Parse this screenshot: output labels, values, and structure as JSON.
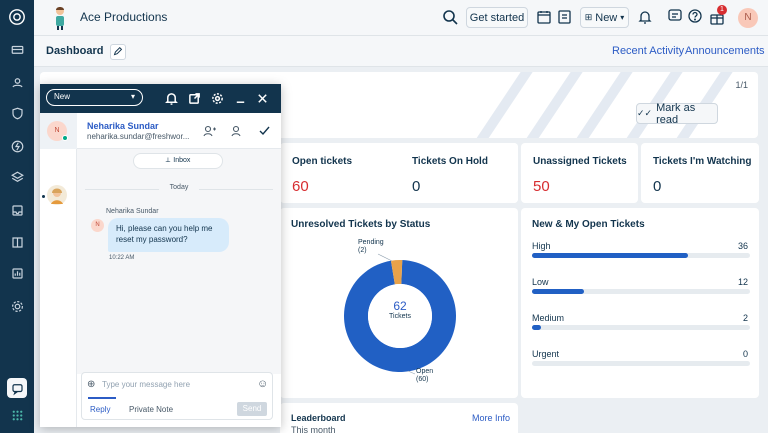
{
  "header": {
    "app_title": "Ace Productions",
    "get_started": "Get started",
    "new_button": "New",
    "notification_count": "1",
    "avatar_initial": "N"
  },
  "subheader": {
    "page_title": "Dashboard",
    "recent_activity": "Recent Activity",
    "announcements": "Announcements"
  },
  "announcement": {
    "page_counter": "1/1",
    "mark_as_read": "Mark as read"
  },
  "stats": [
    {
      "label": "Open tickets",
      "value": "60",
      "color": "#d72d30"
    },
    {
      "label": "Tickets On Hold",
      "value": "0",
      "color": "#12344d"
    },
    {
      "label": "Unassigned Tickets",
      "value": "50",
      "color": "#d72d30"
    },
    {
      "label": "Tickets I'm Watching",
      "value": "0",
      "color": "#12344d"
    }
  ],
  "unresolved": {
    "title": "Unresolved Tickets by Status",
    "center_value": "62",
    "center_label": "Tickets",
    "pending_label": "Pending",
    "pending_count": "(2)",
    "open_label": "Open",
    "open_count": "(60)"
  },
  "chart_data": {
    "type": "pie",
    "title": "Unresolved Tickets by Status",
    "categories": [
      "Open",
      "Pending"
    ],
    "values": [
      60,
      2
    ],
    "colors": [
      "#2160c4",
      "#e8a24a"
    ]
  },
  "my_open": {
    "title": "New & My Open Tickets",
    "rows": [
      {
        "label": "High",
        "count": "36",
        "fraction": 1.0
      },
      {
        "label": "Low",
        "count": "12",
        "fraction": 0.333
      },
      {
        "label": "Medium",
        "count": "2",
        "fraction": 0.056
      },
      {
        "label": "Urgent",
        "count": "0",
        "fraction": 0
      }
    ]
  },
  "leaderboard": {
    "title": "Leaderboard",
    "subtitle": "This month",
    "more_info": "More Info"
  },
  "chat": {
    "status": "New",
    "contact_name": "Neharika Sundar",
    "contact_email": "neharika.sundar@freshwor...",
    "contact_initial": "N",
    "inbox_label": "Inbox",
    "day_label": "Today",
    "sender_name": "Neharika Sundar",
    "message": "Hi, please can you help me reset my password?",
    "message_time": "10:22 AM",
    "composer_placeholder": "Type your message here",
    "reply_tab": "Reply",
    "private_note_tab": "Private Note",
    "send_label": "Send"
  }
}
